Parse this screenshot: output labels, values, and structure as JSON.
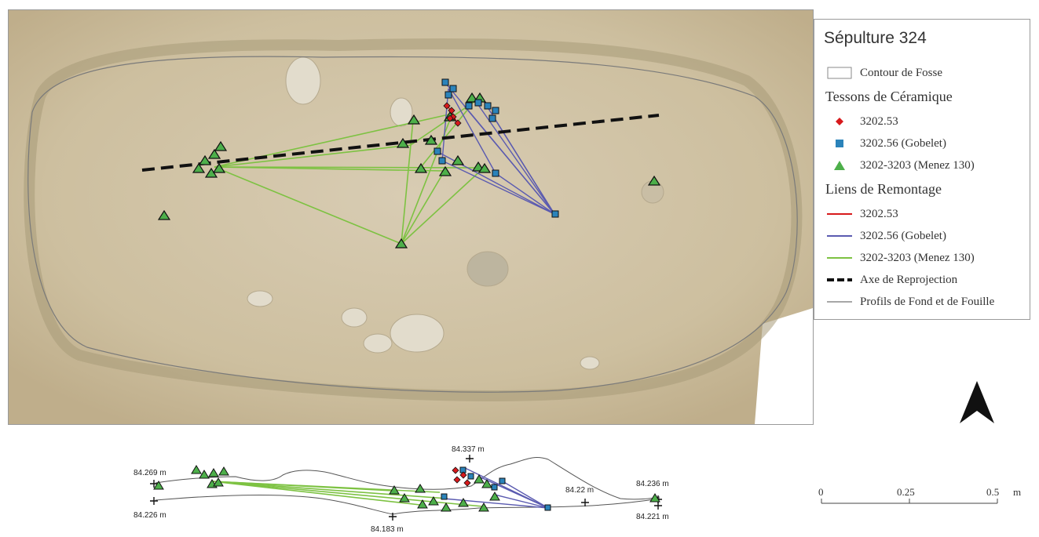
{
  "legend": {
    "title": "Sépulture 324",
    "contour_label": "Contour de Fosse",
    "tessons_heading": "Tessons de Céramique",
    "tessons": [
      {
        "label": "3202.53",
        "color": "#d7191c",
        "symbol": "diamond"
      },
      {
        "label": "3202.56 (Gobelet)",
        "color": "#2b83ba",
        "symbol": "square"
      },
      {
        "label": "3202-3203 (Menez 130)",
        "color": "#4daf4a",
        "symbol": "triangle"
      }
    ],
    "liens_heading": "Liens de Remontage",
    "liens": [
      {
        "label": "3202.53",
        "color": "#d7191c"
      },
      {
        "label": "3202.56  (Gobelet)",
        "color": "#5a5ab0"
      },
      {
        "label": "3202-3203 (Menez 130)",
        "color": "#7dc242"
      }
    ],
    "axe_label": "Axe de Reprojection",
    "profils_label": "Profils de Fond et de Fouille"
  },
  "profile": {
    "elevation_labels": [
      "84.337 m",
      "84.269 m",
      "84.226 m",
      "84.22 m",
      "84.236 m",
      "84.221 m",
      "84.183 m"
    ]
  },
  "scale_bar": {
    "ticks": [
      "0",
      "0.25",
      "0.5"
    ],
    "unit": "m"
  },
  "north_arrow": {
    "icon": "north-arrow-icon",
    "color": "#111111"
  }
}
